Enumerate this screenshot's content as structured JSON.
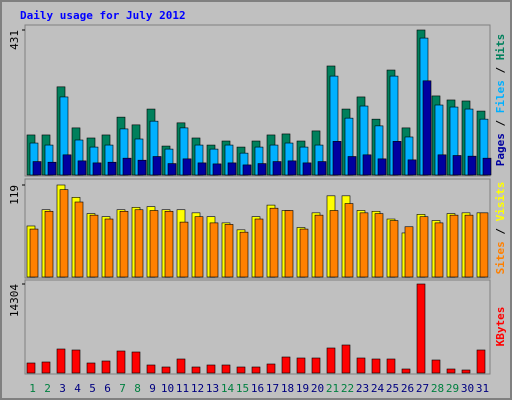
{
  "chart_data": [
    {
      "type": "bar",
      "title": "Daily usage for July 2012",
      "separator": "/",
      "ylim": [
        0,
        431
      ],
      "yticks": [
        431
      ],
      "series": [
        {
          "name": "Hits",
          "color": "#00805c",
          "values": [
            119,
            119,
            262,
            140,
            110,
            119,
            172,
            149,
            196,
            86,
            155,
            110,
            89,
            101,
            83,
            101,
            119,
            122,
            101,
            131,
            324,
            196,
            232,
            166,
            312,
            140,
            431,
            235,
            223,
            220,
            190
          ]
        },
        {
          "name": "Files",
          "color": "#00b0ff",
          "values": [
            95,
            89,
            232,
            104,
            83,
            89,
            137,
            107,
            160,
            77,
            140,
            89,
            77,
            89,
            65,
            83,
            89,
            95,
            83,
            89,
            294,
            169,
            205,
            146,
            294,
            113,
            407,
            208,
            202,
            196,
            166
          ]
        },
        {
          "name": "Pages",
          "color": "#0000a0",
          "values": [
            40,
            38,
            60,
            42,
            36,
            38,
            50,
            44,
            55,
            34,
            48,
            36,
            33,
            36,
            30,
            34,
            40,
            42,
            36,
            40,
            100,
            55,
            60,
            48,
            100,
            45,
            280,
            60,
            58,
            56,
            50
          ]
        }
      ]
    },
    {
      "type": "bar",
      "ylim": [
        0,
        119
      ],
      "yticks": [
        119
      ],
      "series": [
        {
          "name": "Visits",
          "color": "#ffff00",
          "values": [
            66,
            87,
            119,
            103,
            82,
            78,
            87,
            90,
            91,
            87,
            87,
            83,
            78,
            70,
            61,
            78,
            93,
            86,
            64,
            83,
            105,
            105,
            86,
            85,
            75,
            57,
            81,
            73,
            82,
            83,
            83
          ]
        },
        {
          "name": "Sites",
          "color": "#ff8000",
          "values": [
            62,
            85,
            113,
            97,
            80,
            75,
            85,
            87,
            86,
            85,
            71,
            78,
            70,
            68,
            58,
            75,
            89,
            86,
            62,
            80,
            86,
            95,
            83,
            82,
            73,
            65,
            78,
            70,
            80,
            80,
            83
          ]
        }
      ]
    },
    {
      "type": "bar",
      "ylim": [
        0,
        14304
      ],
      "yticks": [
        14304
      ],
      "categories": [
        "1",
        "2",
        "3",
        "4",
        "5",
        "6",
        "7",
        "8",
        "9",
        "10",
        "11",
        "12",
        "13",
        "14",
        "15",
        "16",
        "17",
        "18",
        "19",
        "20",
        "21",
        "22",
        "23",
        "24",
        "25",
        "26",
        "27",
        "28",
        "29",
        "30",
        "31"
      ],
      "category_colors": [
        "#008040",
        "#008040",
        "#000080",
        "#000080",
        "#000080",
        "#000080",
        "#008040",
        "#008040",
        "#000080",
        "#000080",
        "#000080",
        "#000080",
        "#000080",
        "#008040",
        "#008040",
        "#000080",
        "#000080",
        "#000080",
        "#000080",
        "#000080",
        "#008040",
        "#008040",
        "#000080",
        "#000080",
        "#000080",
        "#000080",
        "#000080",
        "#008040",
        "#008040",
        "#000080",
        "#000080"
      ],
      "series": [
        {
          "name": "KBytes",
          "color": "#ff0000",
          "values": [
            1607,
            1768,
            3857,
            3697,
            1607,
            1928,
            3536,
            3375,
            1286,
            964,
            2250,
            964,
            1286,
            1286,
            964,
            964,
            1446,
            2571,
            2411,
            2411,
            4018,
            4500,
            2411,
            2250,
            2250,
            643,
            14304,
            2089,
            643,
            482,
            3697
          ]
        }
      ]
    }
  ]
}
